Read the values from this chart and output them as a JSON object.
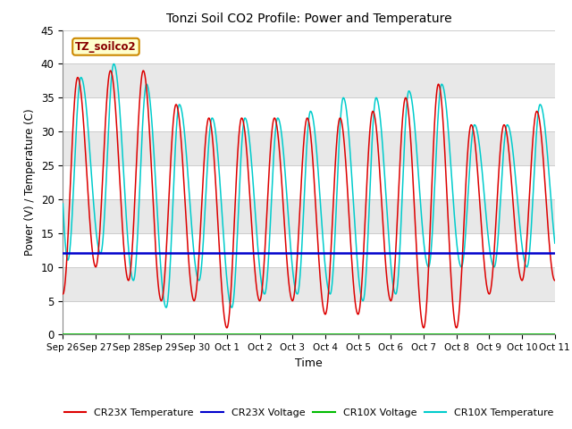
{
  "title": "Tonzi Soil CO2 Profile: Power and Temperature",
  "ylabel": "Power (V) / Temperature (C)",
  "xlabel": "Time",
  "ylim": [
    0,
    45
  ],
  "plot_bg": "#e8e8e8",
  "band_white_ranges": [
    [
      0,
      5
    ],
    [
      10,
      15
    ],
    [
      20,
      25
    ],
    [
      30,
      35
    ],
    [
      40,
      45
    ]
  ],
  "cr23x_temp_color": "#dd0000",
  "cr23x_volt_color": "#0000cc",
  "cr10x_volt_color": "#00bb00",
  "cr10x_temp_color": "#00cccc",
  "cr23x_volt_value": 12.0,
  "cr10x_volt_value": 0.0,
  "label_box_text": "TZ_soilco2",
  "label_box_bg": "#ffffcc",
  "label_box_border": "#cc8800",
  "label_text_color": "#880000",
  "xtick_labels": [
    "Sep 26",
    "Sep 27",
    "Sep 28",
    "Sep 29",
    "Sep 30",
    "Oct 1",
    "Oct 2",
    "Oct 3",
    "Oct 4",
    "Oct 5",
    "Oct 6",
    "Oct 7",
    "Oct 8",
    "Oct 9",
    "Oct 10",
    "Oct 11"
  ],
  "legend_items": [
    {
      "label": "CR23X Temperature",
      "color": "#dd0000"
    },
    {
      "label": "CR23X Voltage",
      "color": "#0000cc"
    },
    {
      "label": "CR10X Voltage",
      "color": "#00bb00"
    },
    {
      "label": "CR10X Temperature",
      "color": "#00cccc"
    }
  ],
  "num_days": 15,
  "cr23x_day_peaks": [
    38,
    39,
    39,
    34,
    32,
    32,
    32,
    32,
    32,
    33,
    35,
    37,
    31,
    31,
    33
  ],
  "cr23x_day_mins": [
    6,
    10,
    8,
    5,
    5,
    1,
    5,
    5,
    3,
    3,
    5,
    1,
    1,
    6,
    8
  ],
  "cr10x_day_peaks": [
    38,
    40,
    37,
    34,
    32,
    32,
    32,
    33,
    35,
    35,
    36,
    37,
    31,
    31,
    34
  ],
  "cr10x_day_mins": [
    11,
    12,
    8,
    4,
    8,
    4,
    6,
    6,
    6,
    5,
    6,
    10,
    10,
    10,
    10
  ],
  "cr10x_phase_shift": 0.15,
  "figsize": [
    6.4,
    4.8
  ],
  "dpi": 100
}
